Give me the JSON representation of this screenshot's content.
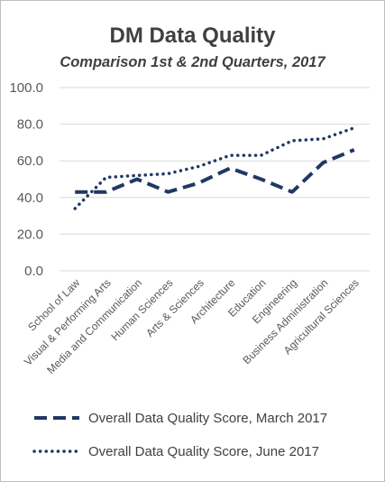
{
  "chart_data": {
    "type": "line",
    "title": "DM Data Quality",
    "subtitle": "Comparison 1st & 2nd Quarters, 2017",
    "xlabel": "",
    "ylabel": "",
    "ylim": [
      0,
      100
    ],
    "yticks": [
      "0.0",
      "20.0",
      "40.0",
      "60.0",
      "80.0",
      "100.0"
    ],
    "grid": true,
    "legend_position": "bottom",
    "categories": [
      "School of Law",
      "Visual & Performing Arts",
      "Media and Communication",
      "Human Sciences",
      "Arts & Sciences",
      "Architecture",
      "Education",
      "Engineering",
      "Business Administration",
      "Agricultural Sciences"
    ],
    "series": [
      {
        "name": "Overall Data Quality Score, March 2017",
        "style": "dashed",
        "color": "#203864",
        "values": [
          43,
          43,
          50,
          43,
          48,
          56,
          50,
          43,
          59,
          66
        ]
      },
      {
        "name": "Overall Data Quality Score, June 2017",
        "style": "dotted",
        "color": "#203864",
        "values": [
          34,
          51,
          52,
          53,
          57,
          63,
          63,
          71,
          72,
          78
        ]
      }
    ]
  }
}
